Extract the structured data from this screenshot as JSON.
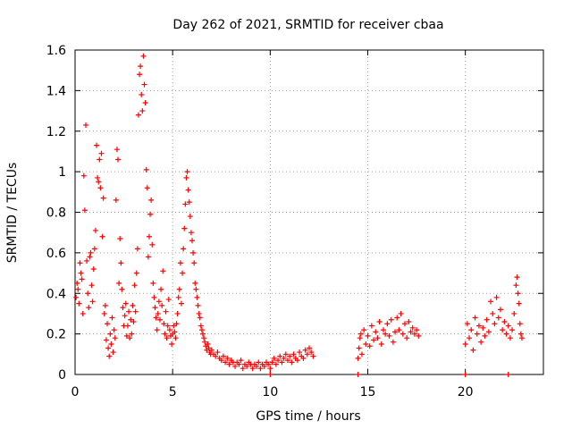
{
  "chart_data": {
    "type": "scatter",
    "title": "Day 262 of 2021, SRMTID for receiver cbaa",
    "xlabel": "GPS time / hours",
    "ylabel": "SRMTID / TECUs",
    "xlim": [
      0,
      24
    ],
    "ylim": [
      0,
      1.6
    ],
    "xticks": [
      0,
      5,
      10,
      15,
      20
    ],
    "xtick_labels": [
      "0",
      "5",
      "10",
      "15",
      "20"
    ],
    "yticks": [
      0,
      0.2,
      0.4,
      0.6,
      0.8,
      1.0,
      1.2,
      1.4,
      1.6
    ],
    "ytick_labels": [
      "0",
      "0.2",
      "0.4",
      "0.6",
      "0.8",
      "1",
      "1.2",
      "1.4",
      "1.6"
    ],
    "grid": true,
    "marker": "+",
    "color": "#ff0000",
    "series": [
      {
        "name": "SRMTID",
        "points": [
          [
            0.05,
            0.38
          ],
          [
            0.1,
            0.45
          ],
          [
            0.15,
            0.42
          ],
          [
            0.2,
            0.35
          ],
          [
            0.25,
            0.55
          ],
          [
            0.3,
            0.5
          ],
          [
            0.35,
            0.47
          ],
          [
            0.4,
            0.3
          ],
          [
            0.45,
            0.98
          ],
          [
            0.5,
            0.81
          ],
          [
            0.55,
            1.23
          ],
          [
            0.6,
            0.56
          ],
          [
            0.65,
            0.4
          ],
          [
            0.7,
            0.33
          ],
          [
            0.75,
            0.58
          ],
          [
            0.8,
            0.6
          ],
          [
            0.85,
            0.44
          ],
          [
            0.9,
            0.36
          ],
          [
            0.95,
            0.52
          ],
          [
            1.0,
            0.62
          ],
          [
            1.05,
            0.71
          ],
          [
            1.1,
            1.13
          ],
          [
            1.15,
            0.97
          ],
          [
            1.2,
            0.95
          ],
          [
            1.25,
            1.06
          ],
          [
            1.3,
            0.92
          ],
          [
            1.35,
            1.09
          ],
          [
            1.4,
            0.68
          ],
          [
            1.45,
            0.87
          ],
          [
            1.5,
            0.3
          ],
          [
            1.55,
            0.34
          ],
          [
            1.6,
            0.17
          ],
          [
            1.65,
            0.25
          ],
          [
            1.7,
            0.13
          ],
          [
            1.75,
            0.09
          ],
          [
            1.8,
            0.2
          ],
          [
            1.85,
            0.15
          ],
          [
            1.9,
            0.28
          ],
          [
            1.95,
            0.11
          ],
          [
            2.0,
            0.22
          ],
          [
            2.05,
            0.18
          ],
          [
            2.1,
            0.86
          ],
          [
            2.15,
            1.11
          ],
          [
            2.2,
            1.06
          ],
          [
            2.25,
            0.45
          ],
          [
            2.3,
            0.67
          ],
          [
            2.35,
            0.55
          ],
          [
            2.4,
            0.42
          ],
          [
            2.45,
            0.33
          ],
          [
            2.5,
            0.24
          ],
          [
            2.55,
            0.29
          ],
          [
            2.6,
            0.35
          ],
          [
            2.65,
            0.19
          ],
          [
            2.7,
            0.24
          ],
          [
            2.75,
            0.31
          ],
          [
            2.8,
            0.18
          ],
          [
            2.85,
            0.27
          ],
          [
            2.9,
            0.2
          ],
          [
            2.95,
            0.34
          ],
          [
            3.0,
            0.26
          ],
          [
            3.05,
            0.44
          ],
          [
            3.1,
            0.31
          ],
          [
            3.15,
            0.5
          ],
          [
            3.2,
            0.62
          ],
          [
            3.25,
            1.28
          ],
          [
            3.3,
            1.48
          ],
          [
            3.35,
            1.52
          ],
          [
            3.4,
            1.38
          ],
          [
            3.45,
            1.3
          ],
          [
            3.5,
            1.57
          ],
          [
            3.55,
            1.43
          ],
          [
            3.6,
            1.34
          ],
          [
            3.65,
            1.01
          ],
          [
            3.7,
            0.92
          ],
          [
            3.75,
            0.58
          ],
          [
            3.8,
            0.68
          ],
          [
            3.85,
            0.79
          ],
          [
            3.9,
            0.86
          ],
          [
            3.95,
            0.64
          ],
          [
            4.0,
            0.45
          ],
          [
            4.05,
            0.38
          ],
          [
            4.1,
            0.33
          ],
          [
            4.15,
            0.28
          ],
          [
            4.2,
            0.22
          ],
          [
            4.25,
            0.3
          ],
          [
            4.3,
            0.36
          ],
          [
            4.35,
            0.27
          ],
          [
            4.4,
            0.42
          ],
          [
            4.45,
            0.34
          ],
          [
            4.5,
            0.51
          ],
          [
            4.55,
            0.25
          ],
          [
            4.6,
            0.2
          ],
          [
            4.65,
            0.31
          ],
          [
            4.7,
            0.18
          ],
          [
            4.75,
            0.24
          ],
          [
            4.8,
            0.37
          ],
          [
            4.85,
            0.22
          ],
          [
            4.9,
            0.19
          ],
          [
            4.95,
            0.15
          ],
          [
            5.0,
            0.2
          ],
          [
            5.05,
            0.24
          ],
          [
            5.1,
            0.21
          ],
          [
            5.15,
            0.18
          ],
          [
            5.2,
            0.25
          ],
          [
            5.25,
            0.3
          ],
          [
            5.3,
            0.38
          ],
          [
            5.35,
            0.42
          ],
          [
            5.4,
            0.55
          ],
          [
            5.45,
            0.35
          ],
          [
            5.5,
            0.5
          ],
          [
            5.55,
            0.62
          ],
          [
            5.6,
            0.72
          ],
          [
            5.65,
            0.84
          ],
          [
            5.7,
            0.97
          ],
          [
            5.75,
            1.0
          ],
          [
            5.8,
            0.91
          ],
          [
            5.85,
            0.85
          ],
          [
            5.9,
            0.78
          ],
          [
            5.95,
            0.7
          ],
          [
            6.0,
            0.66
          ],
          [
            6.05,
            0.6
          ],
          [
            6.1,
            0.55
          ],
          [
            6.15,
            0.45
          ],
          [
            6.2,
            0.42
          ],
          [
            6.25,
            0.38
          ],
          [
            6.3,
            0.34
          ],
          [
            6.35,
            0.3
          ],
          [
            6.4,
            0.28
          ],
          [
            6.45,
            0.24
          ],
          [
            6.5,
            0.22
          ],
          [
            6.55,
            0.2
          ],
          [
            6.6,
            0.18
          ],
          [
            6.65,
            0.16
          ],
          [
            6.7,
            0.14
          ],
          [
            6.75,
            0.12
          ],
          [
            6.8,
            0.15
          ],
          [
            6.85,
            0.13
          ],
          [
            6.9,
            0.11
          ],
          [
            6.95,
            0.1
          ],
          [
            7.0,
            0.12
          ],
          [
            7.1,
            0.1
          ],
          [
            7.2,
            0.09
          ],
          [
            7.3,
            0.11
          ],
          [
            7.4,
            0.08
          ],
          [
            7.5,
            0.07
          ],
          [
            7.6,
            0.09
          ],
          [
            7.7,
            0.06
          ],
          [
            7.8,
            0.08
          ],
          [
            7.9,
            0.05
          ],
          [
            8.0,
            0.07
          ],
          [
            8.1,
            0.06
          ],
          [
            8.2,
            0.04
          ],
          [
            8.3,
            0.06
          ],
          [
            8.4,
            0.05
          ],
          [
            8.5,
            0.07
          ],
          [
            8.6,
            0.03
          ],
          [
            8.7,
            0.05
          ],
          [
            8.8,
            0.04
          ],
          [
            8.9,
            0.06
          ],
          [
            9.0,
            0.05
          ],
          [
            9.1,
            0.03
          ],
          [
            9.2,
            0.05
          ],
          [
            9.3,
            0.04
          ],
          [
            9.4,
            0.06
          ],
          [
            9.5,
            0.03
          ],
          [
            9.6,
            0.05
          ],
          [
            9.7,
            0.04
          ],
          [
            9.8,
            0.06
          ],
          [
            9.9,
            0.05
          ],
          [
            10.0,
            0.03
          ],
          [
            10.1,
            0.06
          ],
          [
            10.2,
            0.08
          ],
          [
            10.3,
            0.05
          ],
          [
            10.4,
            0.07
          ],
          [
            10.5,
            0.09
          ],
          [
            10.6,
            0.06
          ],
          [
            10.7,
            0.08
          ],
          [
            10.8,
            0.1
          ],
          [
            10.9,
            0.07
          ],
          [
            11.0,
            0.09
          ],
          [
            11.1,
            0.06
          ],
          [
            11.2,
            0.1
          ],
          [
            11.3,
            0.08
          ],
          [
            11.4,
            0.07
          ],
          [
            11.5,
            0.11
          ],
          [
            11.6,
            0.09
          ],
          [
            11.7,
            0.08
          ],
          [
            11.8,
            0.12
          ],
          [
            11.9,
            0.1
          ],
          [
            12.0,
            0.13
          ],
          [
            12.1,
            0.11
          ],
          [
            12.2,
            0.09
          ],
          [
            14.5,
            0.08
          ],
          [
            14.55,
            0.13
          ],
          [
            14.6,
            0.18
          ],
          [
            14.65,
            0.2
          ],
          [
            14.7,
            0.1
          ],
          [
            14.8,
            0.22
          ],
          [
            14.9,
            0.15
          ],
          [
            15.0,
            0.19
          ],
          [
            15.1,
            0.14
          ],
          [
            15.2,
            0.24
          ],
          [
            15.3,
            0.17
          ],
          [
            15.4,
            0.21
          ],
          [
            15.5,
            0.18
          ],
          [
            15.6,
            0.26
          ],
          [
            15.7,
            0.15
          ],
          [
            15.8,
            0.22
          ],
          [
            15.9,
            0.2
          ],
          [
            16.0,
            0.25
          ],
          [
            16.1,
            0.19
          ],
          [
            16.2,
            0.27
          ],
          [
            16.3,
            0.16
          ],
          [
            16.4,
            0.21
          ],
          [
            16.5,
            0.28
          ],
          [
            16.6,
            0.22
          ],
          [
            16.7,
            0.3
          ],
          [
            16.8,
            0.2
          ],
          [
            16.9,
            0.25
          ],
          [
            17.0,
            0.18
          ],
          [
            17.1,
            0.26
          ],
          [
            17.2,
            0.21
          ],
          [
            17.3,
            0.23
          ],
          [
            17.4,
            0.2
          ],
          [
            17.5,
            0.22
          ],
          [
            17.6,
            0.19
          ],
          [
            20.0,
            0.15
          ],
          [
            20.1,
            0.25
          ],
          [
            20.2,
            0.18
          ],
          [
            20.3,
            0.22
          ],
          [
            20.4,
            0.12
          ],
          [
            20.5,
            0.28
          ],
          [
            20.6,
            0.2
          ],
          [
            20.7,
            0.24
          ],
          [
            20.8,
            0.16
          ],
          [
            20.9,
            0.23
          ],
          [
            21.0,
            0.19
          ],
          [
            21.1,
            0.27
          ],
          [
            21.2,
            0.21
          ],
          [
            21.3,
            0.36
          ],
          [
            21.4,
            0.3
          ],
          [
            21.5,
            0.25
          ],
          [
            21.6,
            0.38
          ],
          [
            21.7,
            0.28
          ],
          [
            21.8,
            0.32
          ],
          [
            21.9,
            0.22
          ],
          [
            22.0,
            0.26
          ],
          [
            22.1,
            0.2
          ],
          [
            22.2,
            0.24
          ],
          [
            22.3,
            0.18
          ],
          [
            22.4,
            0.22
          ],
          [
            22.5,
            0.3
          ],
          [
            22.6,
            0.44
          ],
          [
            22.65,
            0.48
          ],
          [
            22.7,
            0.4
          ],
          [
            22.75,
            0.35
          ],
          [
            22.8,
            0.25
          ],
          [
            22.85,
            0.2
          ],
          [
            22.9,
            0.18
          ],
          [
            10.0,
            0.0
          ],
          [
            14.5,
            0.0
          ],
          [
            20.0,
            0.0
          ],
          [
            22.2,
            0.0
          ]
        ]
      }
    ]
  }
}
